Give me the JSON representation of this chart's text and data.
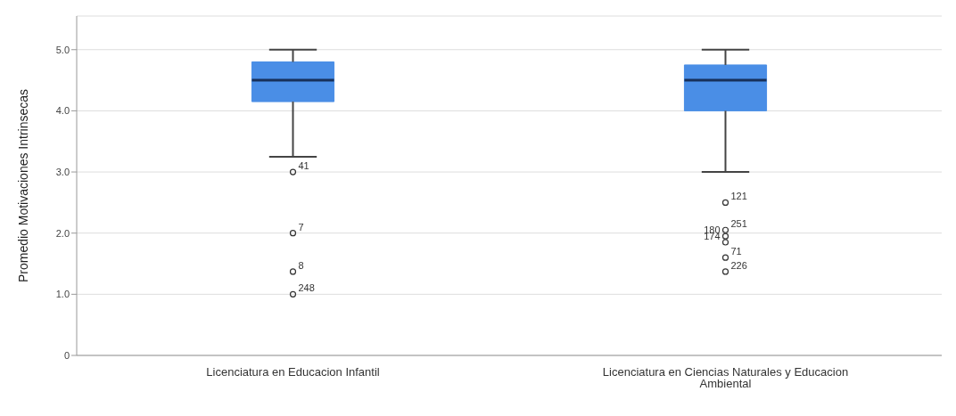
{
  "chart_data": {
    "type": "box",
    "ylabel": "Promedio Motivaciones Intrinsecas",
    "categories": [
      "Licenciatura en Educacion Infantil",
      "Licenciatura en Ciencias Naturales y Educacion Ambiental"
    ],
    "boxes": [
      {
        "low": 3.25,
        "q1": 4.15,
        "median": 4.5,
        "q3": 4.8,
        "high": 5.0
      },
      {
        "low": 3.0,
        "q1": 4.0,
        "median": 4.5,
        "q3": 4.75,
        "high": 5.0
      }
    ],
    "series": [
      {
        "type": "scatter",
        "color": "#333333",
        "x": [
          "Licenciatura en Educacion Infantil",
          "Licenciatura en Educacion Infantil",
          "Licenciatura en Educacion Infantil",
          "Licenciatura en Educacion Infantil",
          "Licenciatura en Ciencias Naturales y Educacion Ambiental",
          "Licenciatura en Ciencias Naturales y Educacion Ambiental",
          "Licenciatura en Ciencias Naturales y Educacion Ambiental",
          "Licenciatura en Ciencias Naturales y Educacion Ambiental",
          "Licenciatura en Ciencias Naturales y Educacion Ambiental",
          "Licenciatura en Ciencias Naturales y Educacion Ambiental"
        ],
        "values": [
          3.0,
          2.0,
          1.37,
          1.0,
          2.5,
          2.05,
          1.95,
          1.85,
          1.6,
          1.37
        ]
      }
    ],
    "color": "#4a8ee6",
    "marker": "circle",
    "ylim": [
      0,
      5.55
    ],
    "yticks": [
      {
        "value": 0,
        "label": "0"
      },
      {
        "value": 1,
        "label": "1.0"
      },
      {
        "value": 2,
        "label": "2.0"
      },
      {
        "value": 3,
        "label": "3.0"
      },
      {
        "value": 4,
        "label": "4.0"
      },
      {
        "value": 5,
        "label": "5.0"
      }
    ],
    "grid": "y",
    "annotations": [
      {
        "text": "41",
        "x": "Licenciatura en Educacion Infantil",
        "y": 3.0
      },
      {
        "text": "7",
        "x": "Licenciatura en Educacion Infantil",
        "y": 2.0
      },
      {
        "text": "8",
        "x": "Licenciatura en Educacion Infantil",
        "y": 1.37
      },
      {
        "text": "248",
        "x": "Licenciatura en Educacion Infantil",
        "y": 1.0
      },
      {
        "text": "121",
        "x": "Licenciatura en Ciencias Naturales y Educacion Ambiental",
        "y": 2.5
      },
      {
        "text": "251",
        "x": "Licenciatura en Ciencias Naturales y Educacion Ambiental",
        "y": 2.05
      },
      {
        "text": "180",
        "x": "Licenciatura en Ciencias Naturales y Educacion Ambiental",
        "y": 1.95
      },
      {
        "text": "174",
        "x": "Licenciatura en Ciencias Naturales y Educacion Ambiental",
        "y": 1.85
      },
      {
        "text": "71",
        "x": "Licenciatura en Ciencias Naturales y Educacion Ambiental",
        "y": 1.6
      },
      {
        "text": "226",
        "x": "Licenciatura en Ciencias Naturales y Educacion Ambiental",
        "y": 1.37
      }
    ]
  }
}
